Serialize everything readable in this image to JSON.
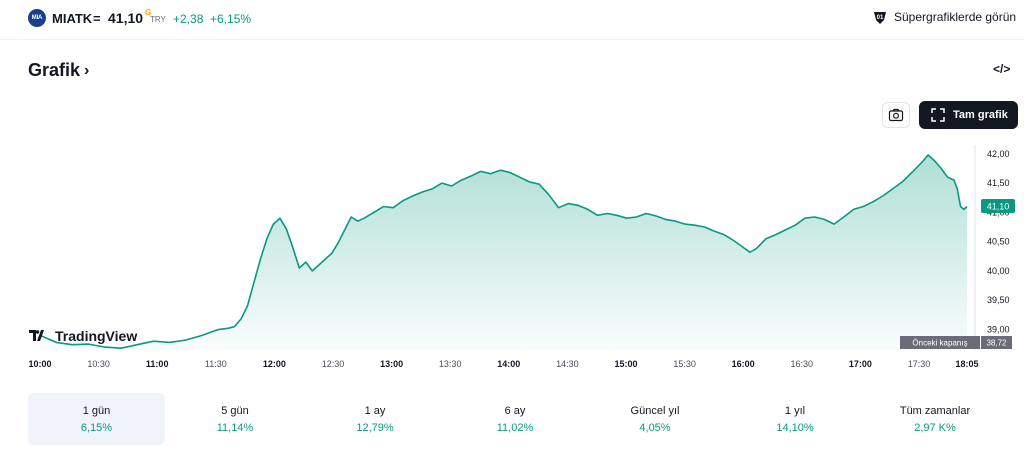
{
  "header": {
    "logo_text": "MIA",
    "symbol": "MIATK",
    "separator": "=",
    "price": "41,10",
    "price_marker": "G",
    "currency": "TRY",
    "change": "+2,38",
    "change_percent": "+6,15%",
    "super_label": "Süpergrafiklerde görün",
    "super_icon": "supercharts-icon"
  },
  "title": {
    "label": "Grafik",
    "chevron": "›",
    "embed_label": "</>"
  },
  "toolbar": {
    "camera_icon": "camera-icon",
    "fullscreen_icon": "fullscreen-icon",
    "full_chart_label": "Tam grafik"
  },
  "chart_data": {
    "type": "area",
    "brand": "TradingView",
    "line_color": "#089981",
    "fill_color": "#089981",
    "x_labels": [
      "10:00",
      "10:30",
      "11:00",
      "11:30",
      "12:00",
      "12:30",
      "13:00",
      "13:30",
      "14:00",
      "14:30",
      "15:00",
      "15:30",
      "16:00",
      "16:30",
      "17:00",
      "17:30",
      "18:05"
    ],
    "y_ticks": [
      "42,00",
      "41,50",
      "41,00",
      "40,50",
      "40,00",
      "39,50",
      "39,00"
    ],
    "ylim": [
      38.65,
      42.15
    ],
    "last_value_label": "41,10",
    "prev_close_label": "Önceki kapanış",
    "prev_close_value": "38,72",
    "prev_close": 38.72,
    "series": [
      {
        "values": [
          [
            0,
            38.9
          ],
          [
            5,
            38.78
          ],
          [
            10,
            38.74
          ],
          [
            15,
            38.75
          ],
          [
            20,
            38.7
          ],
          [
            25,
            38.68
          ],
          [
            30,
            38.74
          ],
          [
            35,
            38.8
          ],
          [
            40,
            38.78
          ],
          [
            45,
            38.82
          ],
          [
            50,
            38.9
          ],
          [
            55,
            39.0
          ],
          [
            58,
            39.02
          ],
          [
            60,
            39.05
          ],
          [
            62,
            39.18
          ],
          [
            64,
            39.4
          ],
          [
            66,
            39.8
          ],
          [
            68,
            40.2
          ],
          [
            70,
            40.55
          ],
          [
            72,
            40.8
          ],
          [
            74,
            40.9
          ],
          [
            76,
            40.72
          ],
          [
            78,
            40.4
          ],
          [
            80,
            40.05
          ],
          [
            82,
            40.15
          ],
          [
            84,
            40.0
          ],
          [
            86,
            40.1
          ],
          [
            88,
            40.2
          ],
          [
            90,
            40.3
          ],
          [
            92,
            40.48
          ],
          [
            94,
            40.7
          ],
          [
            96,
            40.92
          ],
          [
            98,
            40.85
          ],
          [
            100,
            40.9
          ],
          [
            103,
            41.0
          ],
          [
            106,
            41.1
          ],
          [
            109,
            41.08
          ],
          [
            112,
            41.2
          ],
          [
            115,
            41.28
          ],
          [
            118,
            41.35
          ],
          [
            121,
            41.4
          ],
          [
            124,
            41.5
          ],
          [
            127,
            41.45
          ],
          [
            130,
            41.55
          ],
          [
            133,
            41.62
          ],
          [
            136,
            41.7
          ],
          [
            139,
            41.66
          ],
          [
            142,
            41.72
          ],
          [
            145,
            41.68
          ],
          [
            148,
            41.6
          ],
          [
            151,
            41.52
          ],
          [
            154,
            41.48
          ],
          [
            157,
            41.3
          ],
          [
            160,
            41.08
          ],
          [
            163,
            41.15
          ],
          [
            166,
            41.12
          ],
          [
            169,
            41.05
          ],
          [
            172,
            40.95
          ],
          [
            175,
            40.98
          ],
          [
            178,
            40.95
          ],
          [
            181,
            40.9
          ],
          [
            184,
            40.92
          ],
          [
            187,
            40.98
          ],
          [
            190,
            40.94
          ],
          [
            193,
            40.88
          ],
          [
            196,
            40.85
          ],
          [
            199,
            40.8
          ],
          [
            202,
            40.78
          ],
          [
            205,
            40.75
          ],
          [
            208,
            40.68
          ],
          [
            211,
            40.62
          ],
          [
            214,
            40.52
          ],
          [
            217,
            40.4
          ],
          [
            219,
            40.32
          ],
          [
            221,
            40.38
          ],
          [
            224,
            40.55
          ],
          [
            227,
            40.62
          ],
          [
            230,
            40.7
          ],
          [
            233,
            40.78
          ],
          [
            236,
            40.9
          ],
          [
            239,
            40.92
          ],
          [
            242,
            40.88
          ],
          [
            245,
            40.8
          ],
          [
            248,
            40.92
          ],
          [
            251,
            41.05
          ],
          [
            254,
            41.1
          ],
          [
            257,
            41.18
          ],
          [
            260,
            41.28
          ],
          [
            263,
            41.4
          ],
          [
            266,
            41.52
          ],
          [
            269,
            41.68
          ],
          [
            272,
            41.85
          ],
          [
            274,
            41.98
          ],
          [
            276,
            41.88
          ],
          [
            278,
            41.75
          ],
          [
            280,
            41.6
          ],
          [
            282,
            41.55
          ],
          [
            283,
            41.4
          ],
          [
            284,
            41.1
          ],
          [
            285,
            41.05
          ],
          [
            286,
            41.1
          ]
        ]
      }
    ]
  },
  "periods": [
    {
      "label": "1 gün",
      "value": "6,15%"
    },
    {
      "label": "5 gün",
      "value": "11,14%"
    },
    {
      "label": "1 ay",
      "value": "12,79%"
    },
    {
      "label": "6 ay",
      "value": "11,02%"
    },
    {
      "label": "Güncel yıl",
      "value": "4,05%"
    },
    {
      "label": "1 yıl",
      "value": "14,10%"
    },
    {
      "label": "Tüm zamanlar",
      "value": "2,97 K%"
    }
  ]
}
